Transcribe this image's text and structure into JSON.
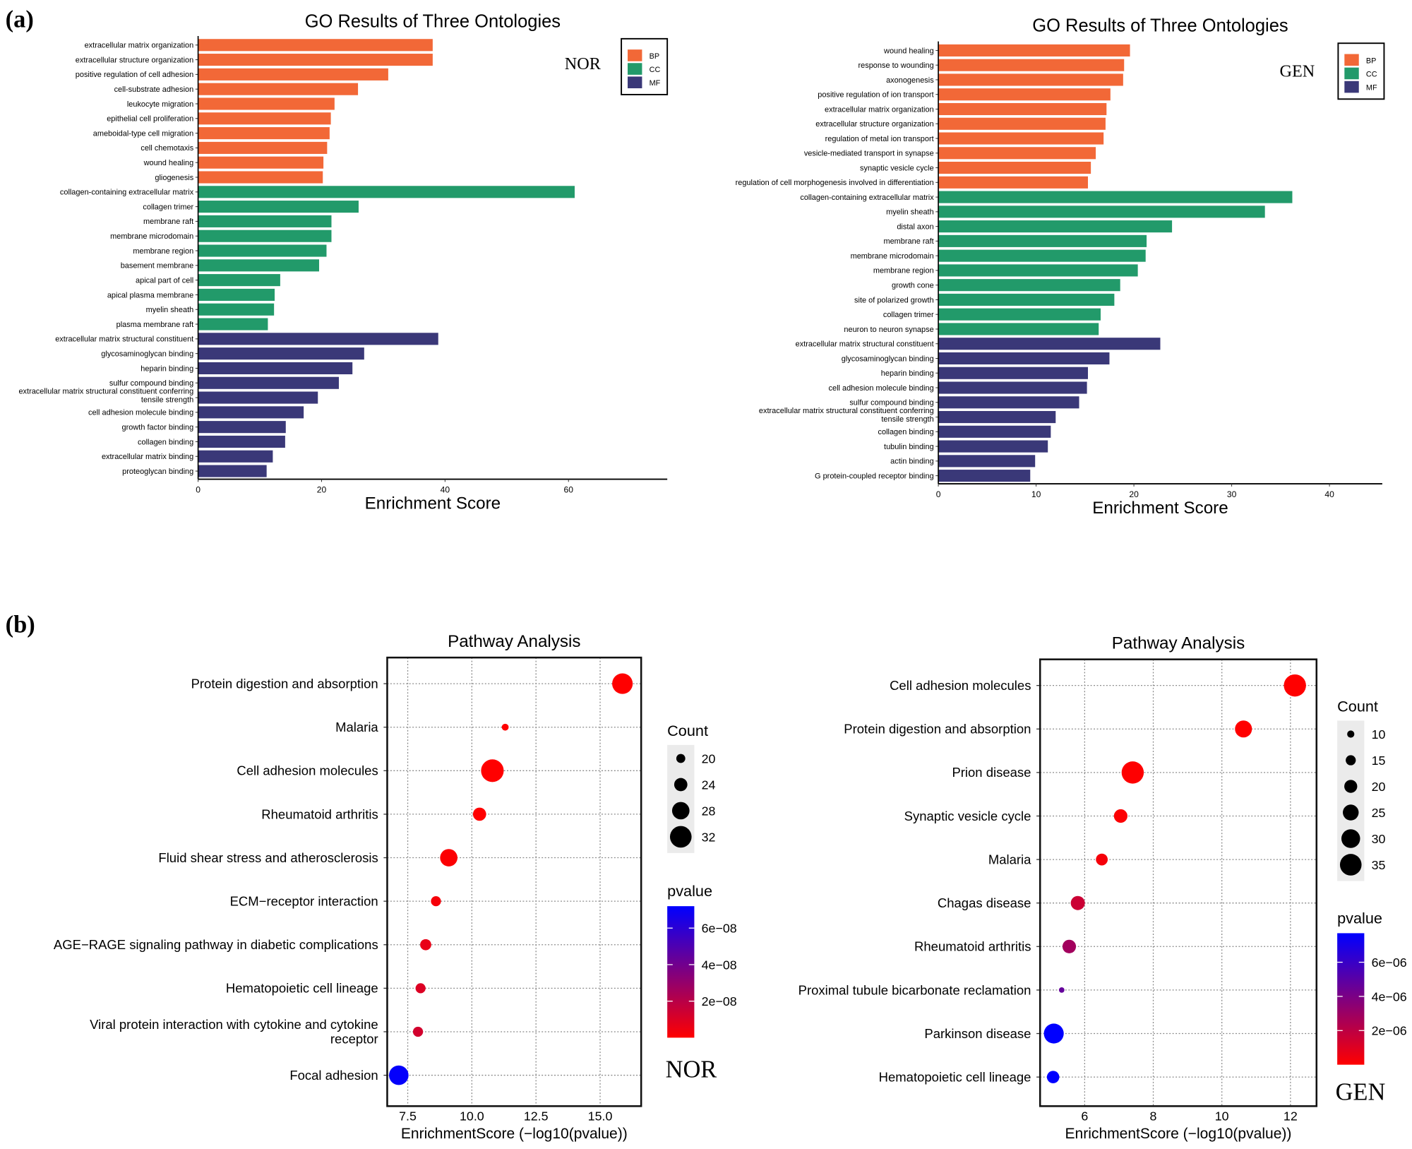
{
  "panel_labels": {
    "a": "(a)",
    "b": "(b)"
  },
  "colors": {
    "BP": "#F26837",
    "CC": "#229A6A",
    "MF": "#3A3878",
    "p_low": "#FF0000",
    "p_high": "#0000FF"
  },
  "chart_data": [
    {
      "type": "bar",
      "orientation": "horizontal",
      "title": "GO Results of Three Ontologies",
      "tag": "NOR",
      "xlabel": "Enrichment Score",
      "xlim": [
        0,
        76
      ],
      "xticks": [
        0,
        20,
        40,
        60
      ],
      "legend": {
        "position": "top-right",
        "entries": [
          "BP",
          "CC",
          "MF"
        ]
      },
      "categories": [
        "extracellular matrix organization",
        "extracellular structure organization",
        "positive regulation of cell adhesion",
        "cell-substrate adhesion",
        "leukocyte migration",
        "epithelial cell proliferation",
        "ameboidal-type cell migration",
        "cell chemotaxis",
        "wound healing",
        "gliogenesis",
        "collagen-containing extracellular matrix",
        "collagen trimer",
        "membrane raft",
        "membrane microdomain",
        "membrane region",
        "basement membrane",
        "apical part of cell",
        "apical plasma membrane",
        "myelin sheath",
        "plasma membrane raft",
        "extracellular matrix structural constituent",
        "glycosaminoglycan binding",
        "heparin binding",
        "sulfur compound binding",
        "extracellular matrix structural constituent conferring\ntensile strength",
        "cell adhesion molecule binding",
        "growth factor binding",
        "collagen binding",
        "extracellular matrix binding",
        "proteoglycan binding"
      ],
      "groups": [
        "BP",
        "BP",
        "BP",
        "BP",
        "BP",
        "BP",
        "BP",
        "BP",
        "BP",
        "BP",
        "CC",
        "CC",
        "CC",
        "CC",
        "CC",
        "CC",
        "CC",
        "CC",
        "CC",
        "CC",
        "MF",
        "MF",
        "MF",
        "MF",
        "MF",
        "MF",
        "MF",
        "MF",
        "MF",
        "MF"
      ],
      "values": [
        38.0,
        38.0,
        30.8,
        25.9,
        22.1,
        21.5,
        21.3,
        20.9,
        20.3,
        20.2,
        61.0,
        26.0,
        21.6,
        21.6,
        20.8,
        19.6,
        13.3,
        12.4,
        12.3,
        11.3,
        38.9,
        26.9,
        25.0,
        22.8,
        19.4,
        17.1,
        14.2,
        14.1,
        12.1,
        11.1
      ]
    },
    {
      "type": "bar",
      "orientation": "horizontal",
      "title": "GO Results of Three Ontologies",
      "tag": "GEN",
      "xlabel": "Enrichment Score",
      "xlim": [
        0,
        45.4
      ],
      "xticks": [
        0,
        10,
        20,
        30,
        40
      ],
      "legend": {
        "position": "top-right",
        "entries": [
          "BP",
          "CC",
          "MF"
        ]
      },
      "categories": [
        "wound healing",
        "response to wounding",
        "axonogenesis",
        "positive regulation of ion transport",
        "extracellular matrix organization",
        "extracellular structure organization",
        "regulation of metal ion transport",
        "vesicle-mediated transport in synapse",
        "synaptic vesicle cycle",
        "regulation of cell morphogenesis involved in differentiation",
        "collagen-containing extracellular matrix",
        "myelin sheath",
        "distal axon",
        "membrane raft",
        "membrane microdomain",
        "membrane region",
        "growth cone",
        "site of polarized growth",
        "collagen trimer",
        "neuron to neuron synapse",
        "extracellular matrix structural constituent",
        "glycosaminoglycan binding",
        "heparin binding",
        "cell adhesion molecule binding",
        "sulfur compound binding",
        "extracellular matrix structural constituent conferring\ntensile strength",
        "collagen binding",
        "tubulin binding",
        "actin binding",
        "G protein-coupled receptor binding"
      ],
      "groups": [
        "BP",
        "BP",
        "BP",
        "BP",
        "BP",
        "BP",
        "BP",
        "BP",
        "BP",
        "BP",
        "CC",
        "CC",
        "CC",
        "CC",
        "CC",
        "CC",
        "CC",
        "CC",
        "CC",
        "CC",
        "MF",
        "MF",
        "MF",
        "MF",
        "MF",
        "MF",
        "MF",
        "MF",
        "MF",
        "MF"
      ],
      "values": [
        19.6,
        19.0,
        18.9,
        17.6,
        17.2,
        17.1,
        16.9,
        16.1,
        15.6,
        15.3,
        36.2,
        33.4,
        23.9,
        21.3,
        21.2,
        20.4,
        18.6,
        18.0,
        16.6,
        16.4,
        22.7,
        17.5,
        15.3,
        15.2,
        14.4,
        12.0,
        11.5,
        11.2,
        9.9,
        9.4
      ]
    },
    {
      "type": "scatter",
      "title": "Pathway Analysis",
      "tag": "NOR",
      "xlabel": "EnrichmentScore (−log10(pvalue))",
      "xlim": [
        6.7,
        16.6
      ],
      "xticks": [
        "7.5",
        "10.0",
        "12.5",
        "15.0"
      ],
      "grid": true,
      "size_legend": {
        "title": "Count",
        "values": [
          "20",
          "24",
          "28",
          "32"
        ]
      },
      "color_legend": {
        "title": "pvalue",
        "ticks": [
          "6e−08",
          "4e−08",
          "2e−08"
        ],
        "tick_values": [
          6e-08,
          4e-08,
          2e-08
        ],
        "range": [
          0,
          7.2e-08
        ]
      },
      "categories": [
        "Protein digestion and absorption",
        "Malaria",
        "Cell adhesion molecules",
        "Rheumatoid arthritis",
        "Fluid shear stress and atherosclerosis",
        "ECM−receptor interaction",
        "AGE−RAGE signaling pathway in diabetic complications",
        "Hematopoietic cell lineage",
        "Viral protein interaction with cytokine and cytokine\nreceptor",
        "Focal adhesion"
      ],
      "x": [
        15.87,
        11.3,
        10.8,
        10.3,
        9.1,
        8.6,
        8.2,
        8.0,
        7.9,
        7.15
      ],
      "count": [
        31,
        18,
        33,
        24,
        28,
        21,
        22,
        21,
        21,
        30
      ]
    },
    {
      "type": "scatter",
      "title": "Pathway Analysis",
      "tag": "GEN",
      "xlabel": "EnrichmentScore (−log10(pvalue))",
      "xlim": [
        4.7,
        12.76
      ],
      "xticks": [
        "6",
        "8",
        "10",
        "12"
      ],
      "grid": true,
      "size_legend": {
        "title": "Count",
        "values": [
          "10",
          "15",
          "20",
          "25",
          "30",
          "35"
        ]
      },
      "color_legend": {
        "title": "pvalue",
        "ticks": [
          "6e−06",
          "4e−06",
          "2e−06"
        ],
        "tick_values": [
          6e-06,
          4e-06,
          2e-06
        ],
        "range": [
          0,
          7.7e-06
        ]
      },
      "categories": [
        "Cell adhesion molecules",
        "Protein digestion and absorption",
        "Prion disease",
        "Synaptic vesicle cycle",
        "Malaria",
        "Chagas disease",
        "Rheumatoid arthritis",
        "Proximal tubule bicarbonate reclamation",
        "Parkinson disease",
        "Hematopoietic cell lineage"
      ],
      "x": [
        12.13,
        10.63,
        7.4,
        7.05,
        6.5,
        5.8,
        5.55,
        5.33,
        5.1,
        5.08
      ],
      "count": [
        36,
        27,
        36,
        21,
        18,
        22,
        21,
        7,
        32,
        19
      ]
    }
  ]
}
